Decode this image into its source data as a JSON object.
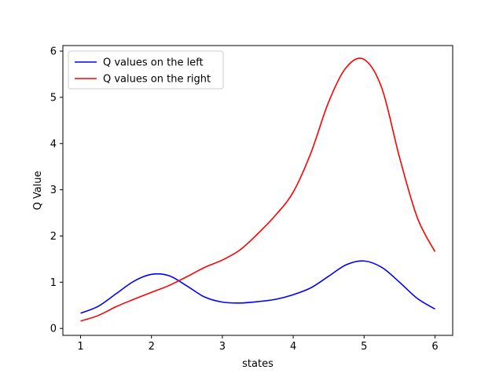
{
  "chart_data": {
    "type": "line",
    "title": "",
    "xlabel": "states",
    "ylabel": "Q Value",
    "xlim": [
      0.75,
      6.25
    ],
    "ylim": [
      -0.15,
      6.12
    ],
    "xticks": [
      "1",
      "2",
      "3",
      "4",
      "5",
      "6"
    ],
    "yticks": [
      "0",
      "1",
      "2",
      "3",
      "4",
      "5",
      "6"
    ],
    "grid": false,
    "legend_position": "top-left",
    "series": [
      {
        "name": "Q values on the left",
        "color": "#0000ff",
        "x": [
          1.0,
          1.25,
          1.5,
          1.75,
          2.0,
          2.25,
          2.5,
          2.75,
          3.0,
          3.25,
          3.5,
          3.75,
          4.0,
          4.25,
          4.5,
          4.75,
          5.0,
          5.25,
          5.5,
          5.75,
          6.0
        ],
        "y": [
          0.33,
          0.48,
          0.75,
          1.02,
          1.17,
          1.14,
          0.92,
          0.68,
          0.57,
          0.55,
          0.58,
          0.63,
          0.73,
          0.88,
          1.13,
          1.38,
          1.46,
          1.32,
          1.0,
          0.65,
          0.42
        ]
      },
      {
        "name": "Q values on the right",
        "color": "#ff0000",
        "x": [
          1.0,
          1.25,
          1.5,
          1.75,
          2.0,
          2.25,
          2.5,
          2.75,
          3.0,
          3.25,
          3.5,
          3.75,
          4.0,
          4.25,
          4.5,
          4.75,
          5.0,
          5.25,
          5.5,
          5.75,
          6.0
        ],
        "y": [
          0.16,
          0.28,
          0.47,
          0.63,
          0.78,
          0.93,
          1.12,
          1.32,
          1.48,
          1.7,
          2.05,
          2.45,
          2.95,
          3.8,
          4.9,
          5.65,
          5.82,
          5.2,
          3.7,
          2.4,
          1.66
        ]
      }
    ]
  }
}
